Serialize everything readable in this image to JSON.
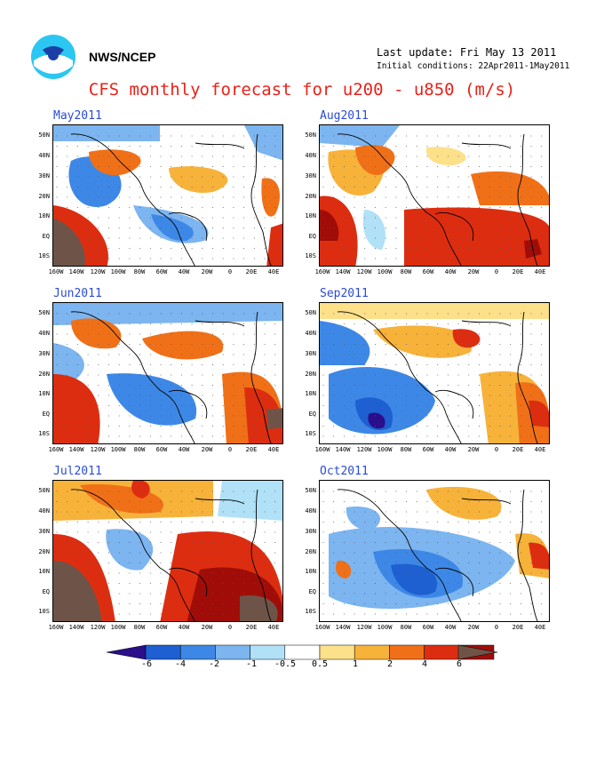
{
  "header": {
    "org": "NWS/NCEP",
    "last_update": "Last update: Fri May 13 2011",
    "init_conditions": "Initial conditions: 22Apr2011-1May2011",
    "title": "CFS monthly forecast for u200 - u850 (m/s)"
  },
  "panels": [
    {
      "label": "May2011"
    },
    {
      "label": "Aug2011"
    },
    {
      "label": "Jun2011"
    },
    {
      "label": "Sep2011"
    },
    {
      "label": "Jul2011"
    },
    {
      "label": "Oct2011"
    }
  ],
  "lat_labels": [
    "50N",
    "40N",
    "30N",
    "20N",
    "10N",
    "EQ",
    "10S"
  ],
  "lon_labels": [
    "160W",
    "140W",
    "120W",
    "100W",
    "80W",
    "60W",
    "40W",
    "20W",
    "0",
    "20E",
    "40E"
  ],
  "colorbar": {
    "labels": [
      "-6",
      "-4",
      "-2",
      "-1",
      "-0.5",
      "0.5",
      "1",
      "2",
      "4",
      "6"
    ],
    "colors": [
      "#2a0e8a",
      "#1e5fd1",
      "#3d88e6",
      "#7cb5f0",
      "#b0e1f7",
      "#ffffff",
      "#fde08a",
      "#f7b23a",
      "#f07018",
      "#dd2d10",
      "#a00d08",
      "#6e5448"
    ]
  }
}
